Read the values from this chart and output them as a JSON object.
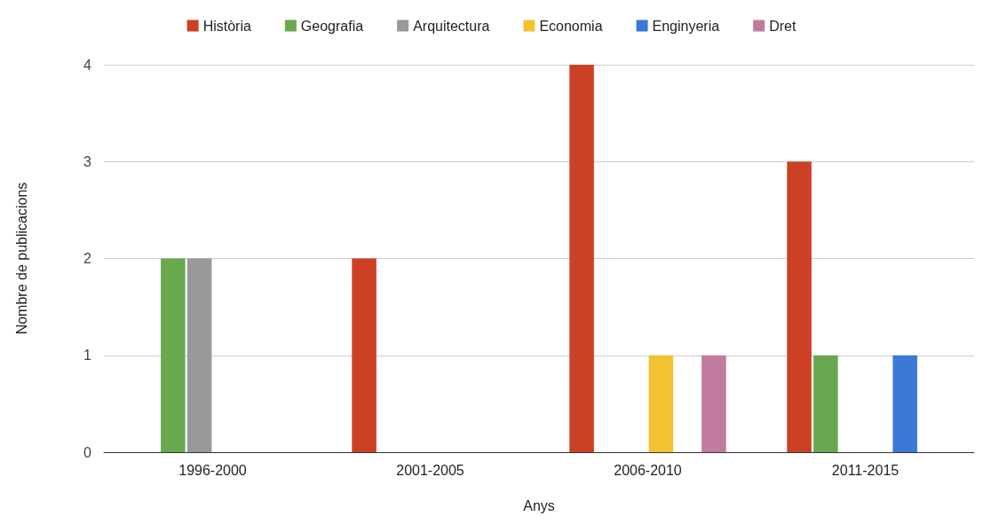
{
  "chart_data": {
    "type": "bar",
    "xlabel": "Anys",
    "ylabel": "Nombre de publicacions",
    "categories": [
      "1996-2000",
      "2001-2005",
      "2006-2010",
      "2011-2015"
    ],
    "series": [
      {
        "name": "Història",
        "color": "#cc4125",
        "values": [
          null,
          2,
          4,
          3
        ]
      },
      {
        "name": "Geografia",
        "color": "#6aa84f",
        "values": [
          2,
          null,
          null,
          1
        ]
      },
      {
        "name": "Arquitectura",
        "color": "#999999",
        "values": [
          2,
          null,
          null,
          null
        ]
      },
      {
        "name": "Economia",
        "color": "#f1c232",
        "values": [
          null,
          null,
          1,
          null
        ]
      },
      {
        "name": "Enginyeria",
        "color": "#3c78d8",
        "values": [
          null,
          null,
          null,
          1
        ]
      },
      {
        "name": "Dret",
        "color": "#c27ba0",
        "values": [
          null,
          null,
          1,
          null
        ]
      }
    ],
    "ylim": [
      0,
      4
    ],
    "yticks": [
      0,
      1,
      2,
      3,
      4
    ],
    "grid": "y",
    "legend": "top"
  }
}
